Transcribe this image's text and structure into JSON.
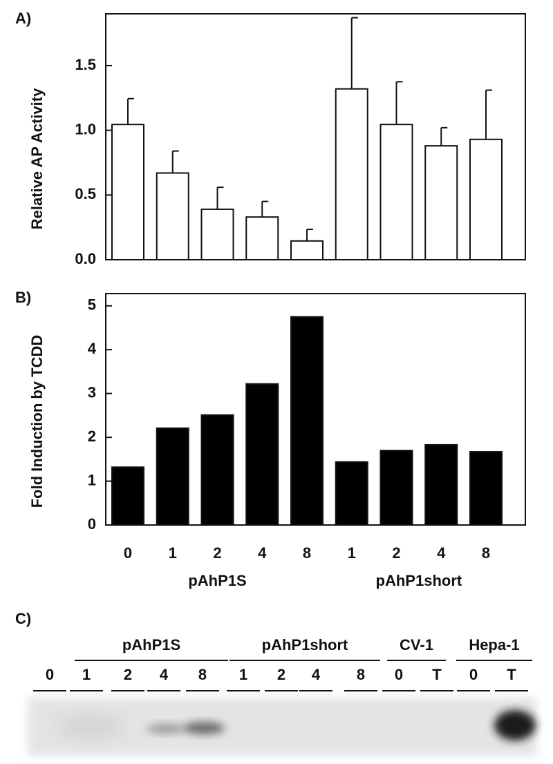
{
  "chart_data": [
    {
      "type": "bar",
      "panel_label": "A)",
      "y_label": "Relative AP Activity",
      "categories": [
        "0",
        "1",
        "2",
        "4",
        "8",
        "1",
        "2",
        "4",
        "8"
      ],
      "values": [
        1.045,
        0.67,
        0.39,
        0.33,
        0.145,
        1.32,
        1.045,
        0.88,
        0.93
      ],
      "errors": [
        0.2,
        0.17,
        0.17,
        0.12,
        0.09,
        0.55,
        0.33,
        0.14,
        0.38
      ],
      "color": "#ffffff",
      "ylim": [
        0,
        1.9
      ],
      "yticks": [
        {
          "value": 0,
          "label": "0.0"
        },
        0.5,
        {
          "value": 1,
          "label": "1.0"
        },
        1.5
      ]
    },
    {
      "type": "bar",
      "panel_label": "B)",
      "y_label": "Fold Induction by TCDD",
      "categories": [
        "0",
        "1",
        "2",
        "4",
        "8",
        "1",
        "2",
        "4",
        "8"
      ],
      "values": [
        1.32,
        2.21,
        2.51,
        3.22,
        4.75,
        1.44,
        1.7,
        1.83,
        1.67
      ],
      "color": "#000000",
      "ylim": [
        0,
        5.28
      ],
      "yticks": [
        0,
        1,
        2,
        3,
        4,
        5
      ],
      "groups": [
        "pAhP1S",
        "pAhP1short"
      ]
    }
  ],
  "panel_c": {
    "panel_label": "C)",
    "groups": [
      "pAhP1S",
      "pAhP1short",
      "CV-1",
      "Hepa-1"
    ],
    "lanes": [
      "0",
      "1",
      "2",
      "4",
      "8",
      "1",
      "2",
      "4",
      "8",
      "0",
      "T",
      "0",
      "T"
    ]
  }
}
